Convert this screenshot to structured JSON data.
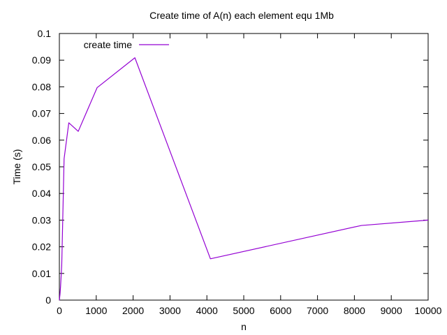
{
  "chart_data": {
    "type": "line",
    "title": "Create time of A(n) each element equ 1Mb",
    "xlabel": "n",
    "ylabel": "Time (s)",
    "xlim": [
      0,
      10000
    ],
    "ylim": [
      0,
      0.1
    ],
    "xticks": [
      0,
      1000,
      2000,
      3000,
      4000,
      5000,
      6000,
      7000,
      8000,
      9000,
      10000
    ],
    "xtick_labels": [
      "0",
      "1000",
      "2000",
      "3000",
      "4000",
      "5000",
      "6000",
      "7000",
      "8000",
      "9000",
      "10000"
    ],
    "yticks": [
      0,
      0.01,
      0.02,
      0.03,
      0.04,
      0.05,
      0.06,
      0.07,
      0.08,
      0.09,
      0.1
    ],
    "ytick_labels": [
      "0",
      "0.01",
      "0.02",
      "0.03",
      "0.04",
      "0.05",
      "0.06",
      "0.07",
      "0.08",
      "0.09",
      "0.1"
    ],
    "grid": false,
    "legend_position": "top-left",
    "series": [
      {
        "name": "create time",
        "color": "#9400d3",
        "x": [
          1,
          2,
          4,
          8,
          16,
          32,
          64,
          128,
          256,
          512,
          1024,
          2048,
          4096,
          8192,
          10000
        ],
        "y": [
          0.0,
          0.0,
          0.0,
          0.001,
          0.002,
          0.005,
          0.013,
          0.053,
          0.0665,
          0.0633,
          0.0797,
          0.0909,
          0.0155,
          0.028,
          0.03
        ]
      }
    ]
  }
}
